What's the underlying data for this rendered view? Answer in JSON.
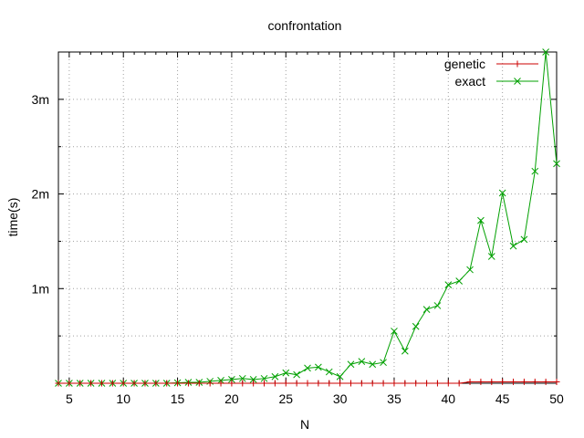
{
  "chart_data": {
    "type": "line",
    "title": "confrontation",
    "xlabel": "N",
    "ylabel": "time(s)",
    "xlim": [
      4,
      50
    ],
    "ylim": [
      0,
      0.0035
    ],
    "x_ticks": [
      {
        "value": 5,
        "label": "5"
      },
      {
        "value": 10,
        "label": "10"
      },
      {
        "value": 15,
        "label": "15"
      },
      {
        "value": 20,
        "label": "20"
      },
      {
        "value": 25,
        "label": "25"
      },
      {
        "value": 30,
        "label": "30"
      },
      {
        "value": 35,
        "label": "35"
      },
      {
        "value": 40,
        "label": "40"
      },
      {
        "value": 45,
        "label": "45"
      },
      {
        "value": 50,
        "label": "50"
      }
    ],
    "y_ticks": [
      {
        "value": 0.001,
        "label": "1m"
      },
      {
        "value": 0.002,
        "label": "2m"
      },
      {
        "value": 0.003,
        "label": "3m"
      }
    ],
    "grid": true,
    "legend_position": "top-right",
    "series": [
      {
        "name": "genetic",
        "color": "#cc0000",
        "marker": "plus",
        "x": [
          4,
          5,
          6,
          7,
          8,
          9,
          10,
          11,
          12,
          13,
          14,
          15,
          16,
          17,
          18,
          19,
          20,
          21,
          22,
          23,
          24,
          25,
          26,
          27,
          28,
          29,
          30,
          31,
          32,
          33,
          34,
          35,
          36,
          37,
          38,
          39,
          40,
          41,
          42,
          43,
          44,
          45,
          46,
          47,
          48,
          49,
          50
        ],
        "y": [
          0,
          0,
          0,
          0,
          0,
          0,
          0,
          0,
          0,
          0,
          0,
          0,
          0,
          0,
          0,
          0,
          0,
          0,
          0,
          0,
          0,
          0,
          0,
          0,
          0,
          0,
          0,
          0,
          0,
          0,
          0,
          0,
          0,
          0,
          0,
          0,
          0,
          0,
          1.5e-05,
          1.5e-05,
          1.5e-05,
          1.5e-05,
          1.5e-05,
          1.5e-05,
          1.5e-05,
          1.5e-05,
          1.5e-05
        ]
      },
      {
        "name": "exact",
        "color": "#00a000",
        "marker": "cross",
        "x": [
          4,
          5,
          6,
          7,
          8,
          9,
          10,
          11,
          12,
          13,
          14,
          15,
          16,
          17,
          18,
          19,
          20,
          21,
          22,
          23,
          24,
          25,
          26,
          27,
          28,
          29,
          30,
          31,
          32,
          33,
          34,
          35,
          36,
          37,
          38,
          39,
          40,
          41,
          42,
          43,
          44,
          45,
          46,
          47,
          48,
          49,
          50
        ],
        "y": [
          0,
          0,
          0,
          0,
          0,
          0,
          0,
          0,
          0,
          0,
          0,
          5e-06,
          1e-05,
          1e-05,
          2e-05,
          3e-05,
          4e-05,
          5e-05,
          4e-05,
          5e-05,
          7e-05,
          0.00011,
          9e-05,
          0.00016,
          0.00017,
          0.00012,
          7e-05,
          0.0002,
          0.00023,
          0.0002,
          0.00022,
          0.00055,
          0.00034,
          0.0006,
          0.00078,
          0.00082,
          0.00104,
          0.00108,
          0.0012,
          0.00172,
          0.00134,
          0.00201,
          0.00145,
          0.00152,
          0.00224,
          0.0035,
          0.00232
        ]
      }
    ]
  }
}
